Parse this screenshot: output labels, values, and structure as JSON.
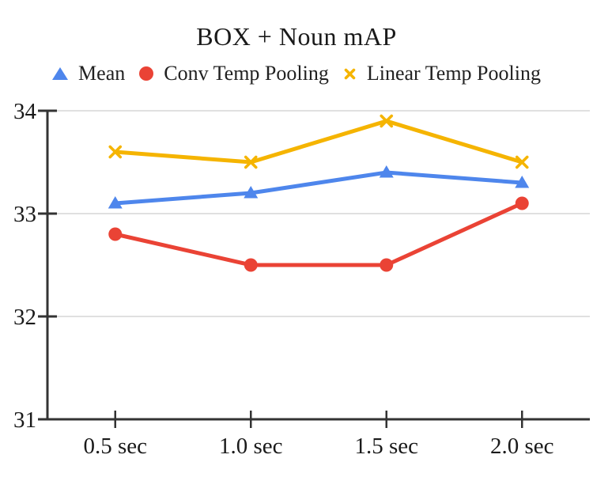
{
  "chart": {
    "title": "BOX + Noun mAP"
  },
  "chart_data": {
    "type": "line",
    "title": "BOX + Noun mAP",
    "categories": [
      "0.5 sec",
      "1.0 sec",
      "1.5 sec",
      "2.0 sec"
    ],
    "series": [
      {
        "name": "Mean",
        "marker": "triangle",
        "color": "#4e86ec",
        "values": [
          33.1,
          33.2,
          33.4,
          33.3
        ]
      },
      {
        "name": "Conv Temp Pooling",
        "marker": "circle",
        "color": "#ea4335",
        "values": [
          32.8,
          32.5,
          32.5,
          33.1
        ]
      },
      {
        "name": "Linear Temp Pooling",
        "marker": "x",
        "color": "#f5b400",
        "values": [
          33.6,
          33.5,
          33.9,
          33.5
        ]
      }
    ],
    "ylim": [
      31,
      34
    ],
    "yticks": [
      34,
      33,
      32,
      31
    ],
    "grid": true,
    "legend_position": "top",
    "colors": {
      "grid": "#e0e0e0",
      "axis": "#333333",
      "tick_label": "#1a1a1a"
    }
  }
}
